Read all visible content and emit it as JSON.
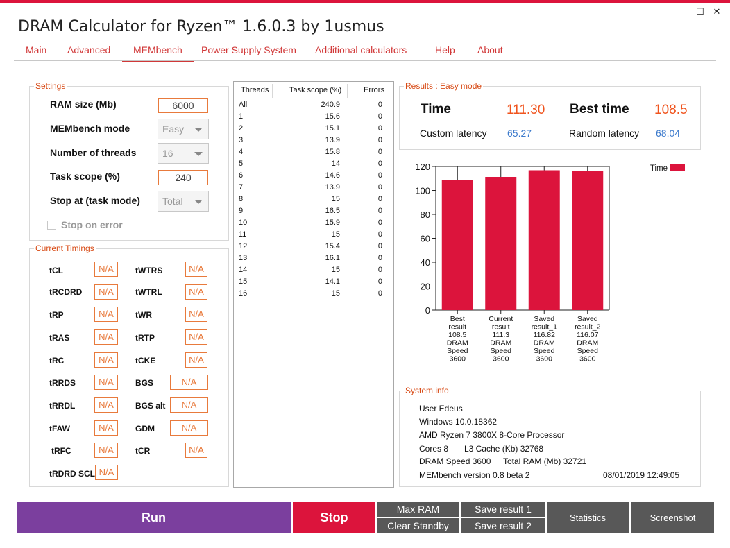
{
  "window": {
    "title": "DRAM Calculator for Ryzen™ 1.6.0.3 by 1usmus",
    "minimize": "–",
    "maximize": "☐",
    "close": "✕"
  },
  "nav": {
    "tabs": [
      "Main",
      "Advanced",
      "MEMbench",
      "Power Supply System",
      "Additional calculators",
      "Help",
      "About"
    ],
    "active": "MEMbench"
  },
  "settings": {
    "group_title": "Settings",
    "ram_size_label": "RAM size (Mb)",
    "ram_size_value": "6000",
    "mode_label": "MEMbench mode",
    "mode_value": "Easy",
    "threads_label": "Number of threads",
    "threads_value": "16",
    "task_scope_label": "Task scope (%)",
    "task_scope_value": "240",
    "stop_at_label": "Stop at (task mode)",
    "stop_at_value": "Total",
    "stop_on_error_label": "Stop on error"
  },
  "timings": {
    "group_title": "Current Timings",
    "left": [
      {
        "name": "tCL",
        "value": "N/A"
      },
      {
        "name": "tRCDRD",
        "value": "N/A"
      },
      {
        "name": "tRP",
        "value": "N/A"
      },
      {
        "name": "tRAS",
        "value": "N/A"
      },
      {
        "name": "tRC",
        "value": "N/A"
      },
      {
        "name": "tRRDS",
        "value": "N/A"
      },
      {
        "name": "tRRDL",
        "value": "N/A"
      },
      {
        "name": "tFAW",
        "value": "N/A"
      },
      {
        "name": "tRFC",
        "value": "N/A"
      },
      {
        "name": "tRDRD SCL",
        "value": "N/A"
      }
    ],
    "right": [
      {
        "name": "tWTRS",
        "value": "N/A"
      },
      {
        "name": "tWTRL",
        "value": "N/A"
      },
      {
        "name": "tWR",
        "value": "N/A"
      },
      {
        "name": "tRTP",
        "value": "N/A"
      },
      {
        "name": "tCKE",
        "value": "N/A"
      },
      {
        "name": "BGS",
        "value": "N/A"
      },
      {
        "name": "BGS alt",
        "value": "N/A"
      },
      {
        "name": "GDM",
        "value": "N/A"
      },
      {
        "name": "tCR",
        "value": "N/A"
      }
    ]
  },
  "threads_table": {
    "headers": [
      "Threads",
      "Task scope (%)",
      "Errors"
    ],
    "rows": [
      [
        "All",
        "240.9",
        "0"
      ],
      [
        "1",
        "15.6",
        "0"
      ],
      [
        "2",
        "15.1",
        "0"
      ],
      [
        "3",
        "13.9",
        "0"
      ],
      [
        "4",
        "15.8",
        "0"
      ],
      [
        "5",
        "14",
        "0"
      ],
      [
        "6",
        "14.6",
        "0"
      ],
      [
        "7",
        "13.9",
        "0"
      ],
      [
        "8",
        "15",
        "0"
      ],
      [
        "9",
        "16.5",
        "0"
      ],
      [
        "10",
        "15.9",
        "0"
      ],
      [
        "11",
        "15",
        "0"
      ],
      [
        "12",
        "15.4",
        "0"
      ],
      [
        "13",
        "16.1",
        "0"
      ],
      [
        "14",
        "15",
        "0"
      ],
      [
        "15",
        "14.1",
        "0"
      ],
      [
        "16",
        "15",
        "0"
      ]
    ]
  },
  "results": {
    "group_title": "Results : Easy mode",
    "time_label": "Time",
    "time_value": "111.30",
    "best_time_label": "Best time",
    "best_time_value": "108.5",
    "custom_latency_label": "Custom latency",
    "custom_latency_value": "65.27",
    "random_latency_label": "Random latency",
    "random_latency_value": "68.04"
  },
  "chart_data": {
    "type": "bar",
    "categories": [
      [
        "Best",
        "result",
        "108.5",
        "DRAM",
        "Speed",
        "3600"
      ],
      [
        "Current",
        "result",
        "111.3",
        "DRAM",
        "Speed",
        "3600"
      ],
      [
        "Saved",
        "result_1",
        "116.82",
        "DRAM",
        "Speed",
        "3600"
      ],
      [
        "Saved",
        "result_2",
        "116.07",
        "DRAM",
        "Speed",
        "3600"
      ]
    ],
    "series": [
      {
        "name": "Time",
        "values": [
          108.5,
          111.3,
          116.82,
          116.07
        ]
      }
    ],
    "yticks": [
      "0",
      "20",
      "40",
      "60",
      "80",
      "100",
      "120"
    ],
    "ylim": [
      0,
      120
    ],
    "bar_color": "#dc143c",
    "legend": "top-right"
  },
  "system_info": {
    "group_title": "System info",
    "user": "User Edeus",
    "os": "Windows 10.0.18362",
    "cpu": "AMD Ryzen 7 3800X 8-Core Processor",
    "cores": "Cores 8",
    "l3": "L3 Cache (Kb)  32768",
    "dram_speed": "DRAM Speed 3600",
    "total_ram": "Total RAM (Mb)  32721",
    "version": "MEMbench version 0.8 beta 2",
    "datetime": "08/01/2019 12:49:05"
  },
  "buttons": {
    "run": "Run",
    "stop": "Stop",
    "max_ram": "Max RAM",
    "clear_standby": "Clear Standby",
    "save_result_1": "Save result 1",
    "save_result_2": "Save result 2",
    "statistics": "Statistics",
    "screenshot": "Screenshot"
  },
  "colors": {
    "accent": "#dc143c",
    "run": "#7b3f9e",
    "stop": "#dc143c",
    "grey_button": "#585858",
    "orange": "#f0541e",
    "blue": "#3c7acc"
  }
}
